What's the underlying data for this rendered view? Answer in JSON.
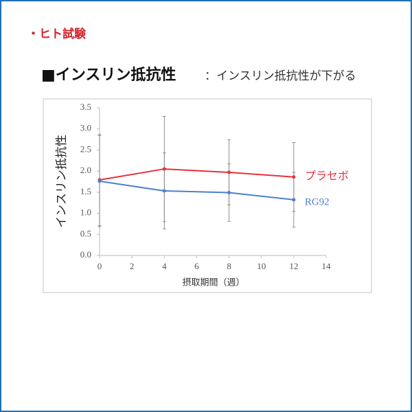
{
  "heading": "・ヒト試験",
  "chart_data": {
    "type": "line",
    "title": "■インスリン抵抗性",
    "subtitle": "：インスリン抵抗性が下がる",
    "x_label": "摂取期間（週）",
    "y_label": "インスリン抵抗性",
    "x": [
      0,
      4,
      8,
      12
    ],
    "series": [
      {
        "name": "プラセボ",
        "color": "#e8303a",
        "values": [
          1.79,
          2.05,
          1.97,
          1.86
        ],
        "errors": [
          1.08,
          1.25,
          0.77,
          0.82
        ]
      },
      {
        "name": "RG92",
        "color": "#4a7fd0",
        "values": [
          1.76,
          1.53,
          1.49,
          1.32
        ],
        "errors": [
          1.08,
          0.9,
          0.68,
          0.65
        ]
      }
    ],
    "xlim": [
      0,
      14
    ],
    "xticks": [
      0,
      2,
      4,
      6,
      8,
      10,
      12,
      14
    ],
    "ylim": [
      0,
      3.5
    ],
    "yticks": [
      {
        "value": 0,
        "label": "0.0"
      },
      0.5,
      {
        "value": 1,
        "label": "1.0"
      },
      1.5,
      {
        "value": 2,
        "label": "2.0"
      },
      2.5,
      {
        "value": 3,
        "label": "3.0"
      },
      3.5
    ],
    "grid": false
  }
}
